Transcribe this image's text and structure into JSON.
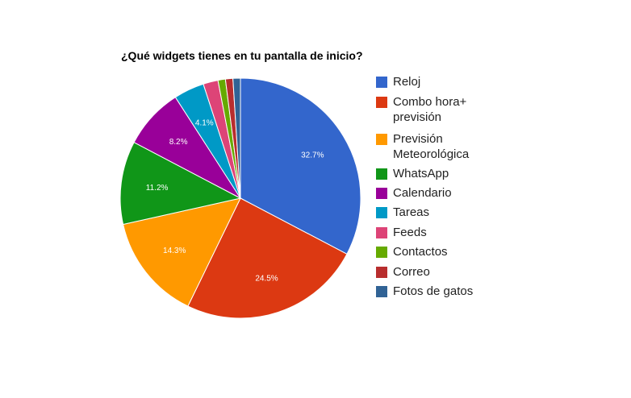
{
  "chart_data": {
    "type": "pie",
    "title": "¿Qué widgets tienes en tu pantalla de inicio?",
    "legend_position": "right",
    "slices": [
      {
        "label": "Reloj",
        "value": 32.7,
        "value_label": "32.7%",
        "color": "#3366cc"
      },
      {
        "label": "Combo hora+ previsión",
        "value": 24.5,
        "value_label": "24.5%",
        "color": "#dc3912"
      },
      {
        "label": "Previsión Meteorológica",
        "value": 14.3,
        "value_label": "14.3%",
        "color": "#ff9900"
      },
      {
        "label": "WhatsApp",
        "value": 11.2,
        "value_label": "11.2%",
        "color": "#109618"
      },
      {
        "label": "Calendario",
        "value": 8.2,
        "value_label": "8.2%",
        "color": "#990099"
      },
      {
        "label": "Tareas",
        "value": 4.1,
        "value_label": "4.1%",
        "color": "#0099c6"
      },
      {
        "label": "Feeds",
        "value": 2.0,
        "value_label": "",
        "color": "#dd4477"
      },
      {
        "label": "Contactos",
        "value": 1.0,
        "value_label": "",
        "color": "#66aa00"
      },
      {
        "label": "Correo",
        "value": 1.0,
        "value_label": "",
        "color": "#b82e2e"
      },
      {
        "label": "Fotos de gatos",
        "value": 1.0,
        "value_label": "",
        "color": "#316395"
      }
    ]
  }
}
